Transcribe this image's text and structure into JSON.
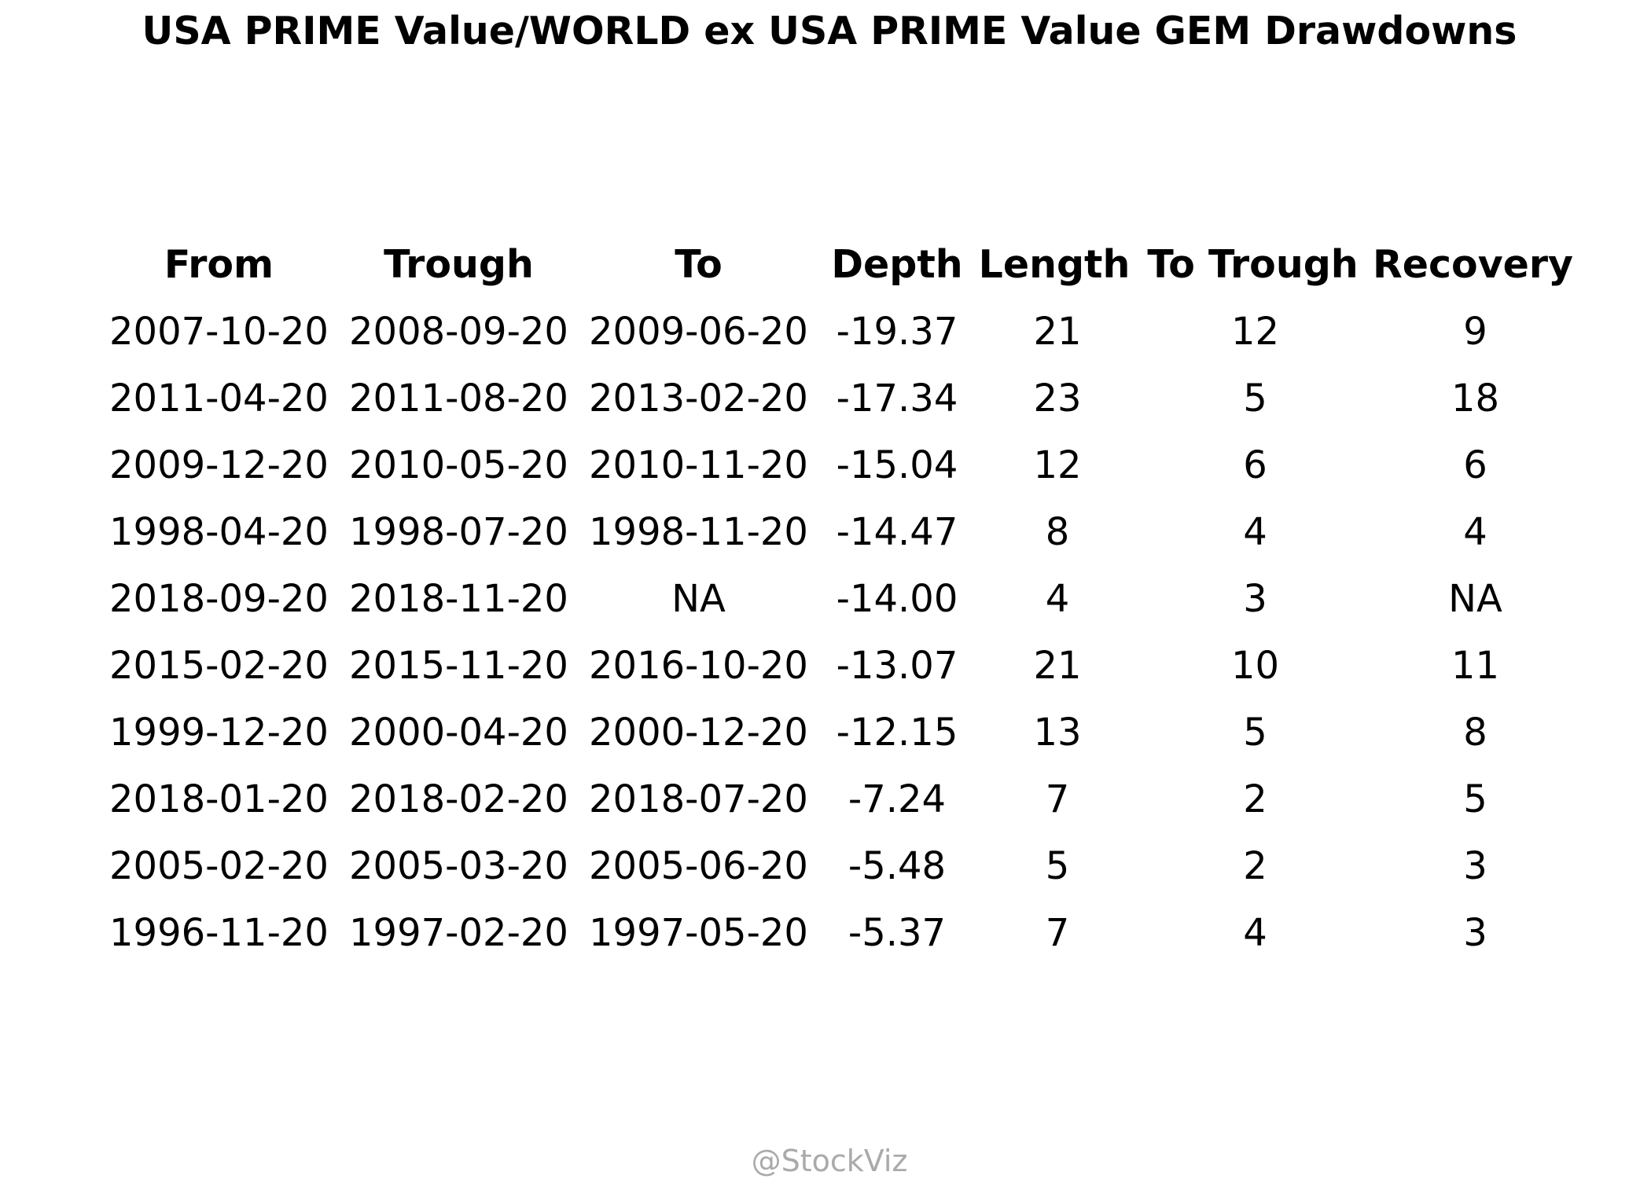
{
  "chart_data": {
    "type": "table",
    "title": "USA PRIME Value/WORLD ex USA PRIME Value GEM Drawdowns",
    "columns": [
      "From",
      "Trough",
      "To",
      "Depth",
      "Length",
      "To Trough",
      "Recovery"
    ],
    "rows": [
      [
        "2007-10-20",
        "2008-09-20",
        "2009-06-20",
        "-19.37",
        "21",
        "12",
        "9"
      ],
      [
        "2011-04-20",
        "2011-08-20",
        "2013-02-20",
        "-17.34",
        "23",
        "5",
        "18"
      ],
      [
        "2009-12-20",
        "2010-05-20",
        "2010-11-20",
        "-15.04",
        "12",
        "6",
        "6"
      ],
      [
        "1998-04-20",
        "1998-07-20",
        "1998-11-20",
        "-14.47",
        "8",
        "4",
        "4"
      ],
      [
        "2018-09-20",
        "2018-11-20",
        "NA",
        "-14.00",
        "4",
        "3",
        "NA"
      ],
      [
        "2015-02-20",
        "2015-11-20",
        "2016-10-20",
        "-13.07",
        "21",
        "10",
        "11"
      ],
      [
        "1999-12-20",
        "2000-04-20",
        "2000-12-20",
        "-12.15",
        "13",
        "5",
        "8"
      ],
      [
        "2018-01-20",
        "2018-02-20",
        "2018-07-20",
        "-7.24",
        "7",
        "2",
        "5"
      ],
      [
        "2005-02-20",
        "2005-03-20",
        "2005-06-20",
        "-5.48",
        "5",
        "2",
        "3"
      ],
      [
        "1996-11-20",
        "1997-02-20",
        "1997-05-20",
        "-5.37",
        "7",
        "4",
        "3"
      ]
    ]
  },
  "footer": "@StockViz"
}
